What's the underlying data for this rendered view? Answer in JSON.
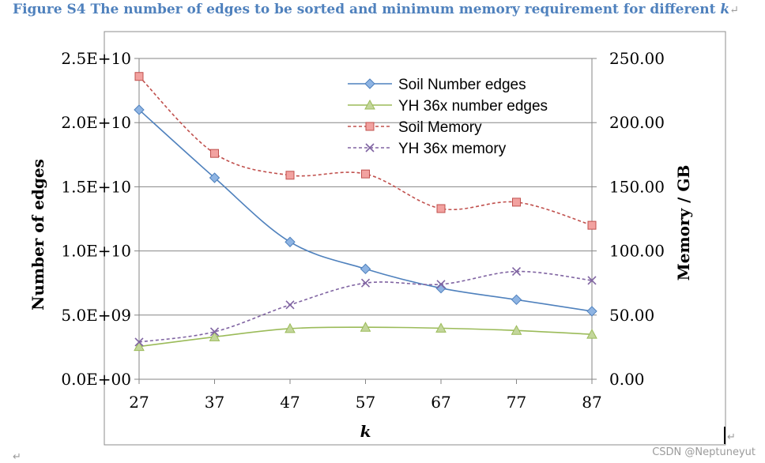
{
  "figure_title": {
    "prefix": "Figure S4 The number of edges to be sorted and minimum memory requirement for different ",
    "k": "k",
    "mark": "↵"
  },
  "watermark": "CSDN @Neptuneyut",
  "paragraph_mark": "↵",
  "chart_data": {
    "type": "line",
    "title": "",
    "xlabel": "k",
    "ylabel_left": "Number of edges",
    "ylabel_right": "Memory / GB",
    "x": [
      27,
      37,
      47,
      57,
      67,
      77,
      87
    ],
    "xlim": [
      27,
      87
    ],
    "ylim_left": [
      0,
      25000000000
    ],
    "ylim_right": [
      0,
      250
    ],
    "yticks_left": [
      "0.0E+00",
      "5.0E+09",
      "1.0E+10",
      "1.5E+10",
      "2.0E+10",
      "2.5E+10"
    ],
    "yticks_right": [
      "0.00",
      "50.00",
      "100.00",
      "150.00",
      "200.00",
      "250.00"
    ],
    "grid": true,
    "legend_position": "top-right",
    "series": [
      {
        "name": "Soil Number edges",
        "axis": "left",
        "color": "#4f81bd",
        "marker": "diamond",
        "dash": "solid",
        "values": [
          21000000000,
          15700000000,
          10700000000,
          8600000000,
          7100000000,
          6200000000,
          5300000000
        ]
      },
      {
        "name": "YH 36x number edges",
        "axis": "left",
        "color": "#9bbb59",
        "marker": "triangle",
        "dash": "solid",
        "values": [
          2550000000,
          3300000000,
          3950000000,
          4050000000,
          3980000000,
          3800000000,
          3500000000
        ]
      },
      {
        "name": "Soil Memory",
        "axis": "right",
        "color": "#c0504d",
        "marker": "square",
        "dash": "dashed",
        "values": [
          236,
          176,
          159,
          160,
          133,
          138,
          120
        ]
      },
      {
        "name": "YH 36x memory",
        "axis": "right",
        "color": "#8064a2",
        "marker": "x",
        "dash": "dashed",
        "values": [
          29,
          37,
          58,
          75,
          74,
          84,
          77
        ]
      }
    ]
  }
}
